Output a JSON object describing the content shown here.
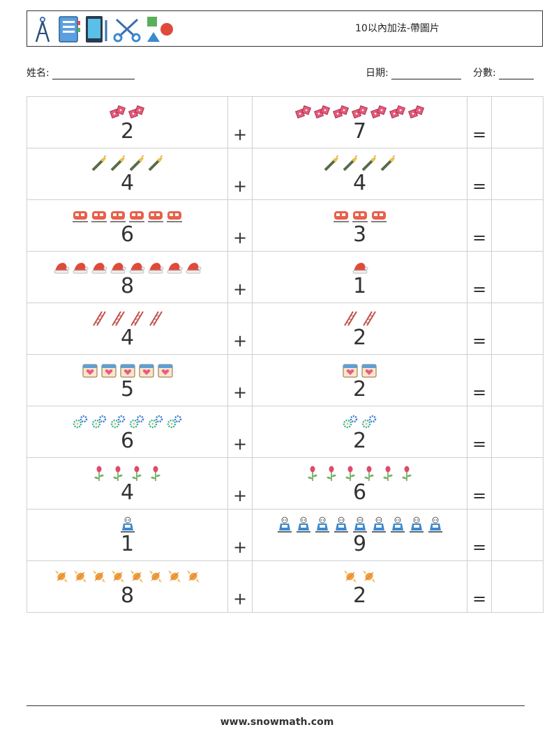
{
  "header": {
    "title": "10以內加法-帶圖片",
    "icons": [
      "compass-icon",
      "notebook-icon",
      "tablet-icon",
      "scissors-icon",
      "shapes-icon"
    ]
  },
  "meta": {
    "name_label": "姓名:",
    "date_label": "日期:",
    "score_label": "分數:"
  },
  "operators": {
    "plus": "+",
    "equals": "="
  },
  "problems": [
    {
      "a": 2,
      "b": 7,
      "icon": "dice-icon",
      "color": "#e85a7a"
    },
    {
      "a": 4,
      "b": 4,
      "icon": "flashlight-icon",
      "color": "#5a6b4a"
    },
    {
      "a": 6,
      "b": 3,
      "icon": "train-icon",
      "color": "#e8604a"
    },
    {
      "a": 8,
      "b": 1,
      "icon": "santa-hat-icon",
      "color": "#e04a3a"
    },
    {
      "a": 4,
      "b": 2,
      "icon": "ladder-icon",
      "color": "#c0504a"
    },
    {
      "a": 5,
      "b": 2,
      "icon": "calendar-heart-icon",
      "color": "#e85a8a"
    },
    {
      "a": 6,
      "b": 2,
      "icon": "gears-icon",
      "color": "#3ab0a0"
    },
    {
      "a": 4,
      "b": 6,
      "icon": "flower-icon",
      "color": "#e04a6a"
    },
    {
      "a": 1,
      "b": 9,
      "icon": "robot-icon",
      "color": "#3a8ad0"
    },
    {
      "a": 8,
      "b": 2,
      "icon": "candy-icon",
      "color": "#f0a040"
    }
  ],
  "footer": {
    "url": "www.snowmath.com"
  }
}
